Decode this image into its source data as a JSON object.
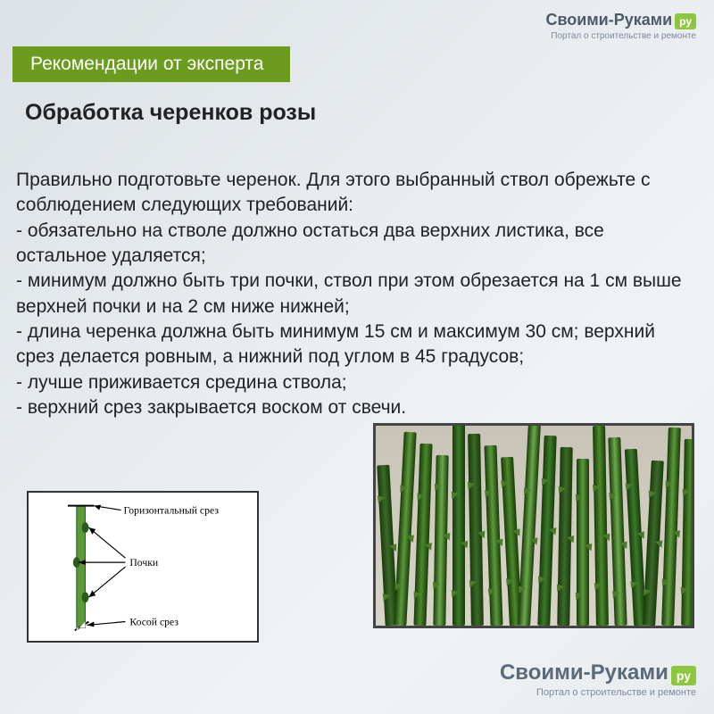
{
  "logo": {
    "brand": "Своими-Руками",
    "badge": "ру",
    "tagline": "Портал о строительстве и ремонте"
  },
  "header": "Рекомендации от эксперта",
  "subtitle": "Обработка черенков розы",
  "intro": "Правильно подготовьте черенок. Для этого выбранный ствол обрежьте с соблюдением следующих требований:",
  "bullets": [
    "- обязательно на стволе должно остаться два верхних листика, все остальное удаляется;",
    "- минимум должно быть три почки, ствол при этом обрезается на 1 см выше верхней почки и на 2 см ниже нижней;",
    "- длина черенка должна быть минимум 15 см и максимум 30 см; верхний срез делается ровным, а нижний под углом в 45 градусов;",
    "- лучше приживается средина ствола;",
    "- верхний срез закрывается воском от свечи."
  ],
  "diagram": {
    "label_top": "Горизонтальный срез",
    "label_mid": "Почки",
    "label_bot": "Косой срез",
    "stem_color": "#5a9a3a",
    "line_color": "#000000",
    "bud_count": 3
  },
  "photo": {
    "stem_count": 18,
    "stem_colors": [
      "#3a6a2a",
      "#5a9a3a",
      "#4a8a2a",
      "#6aaa4a",
      "#3a7a2a"
    ],
    "bg_color": "#d0ccc0"
  },
  "colors": {
    "header_bg": "#6b9b1f",
    "page_bg": "#e8ecef",
    "badge_bg": "#8fc63f",
    "text": "#222222"
  }
}
